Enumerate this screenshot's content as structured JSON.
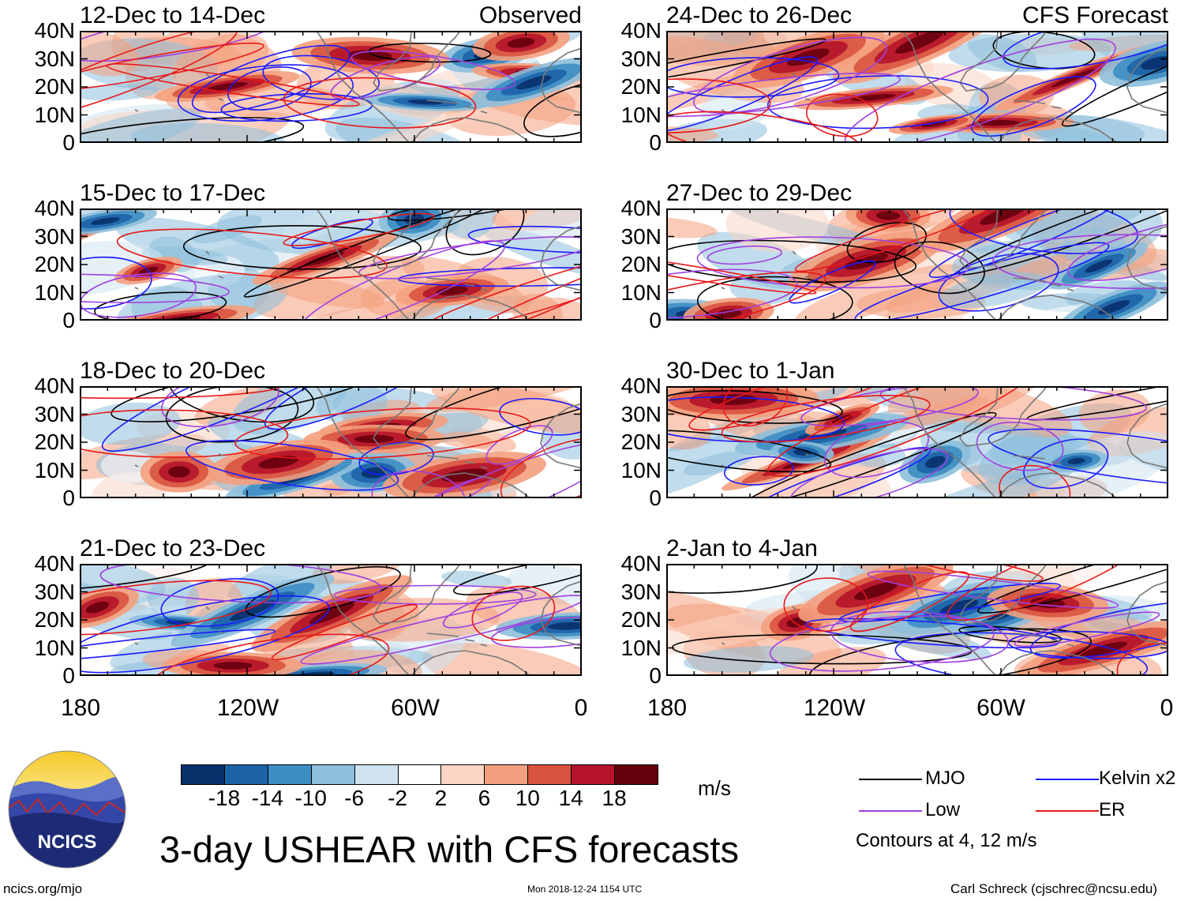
{
  "panels": [
    {
      "title": "12-Dec to 14-Dec",
      "tag": "Observed",
      "seed": 1
    },
    {
      "title": "24-Dec to 26-Dec",
      "tag": "CFS Forecast",
      "seed": 2
    },
    {
      "title": "15-Dec to 17-Dec",
      "tag": "",
      "seed": 3
    },
    {
      "title": "27-Dec to 29-Dec",
      "tag": "",
      "seed": 4
    },
    {
      "title": "18-Dec to 20-Dec",
      "tag": "",
      "seed": 5
    },
    {
      "title": "30-Dec to 1-Jan",
      "tag": "",
      "seed": 6
    },
    {
      "title": "21-Dec to 23-Dec",
      "tag": "",
      "seed": 7
    },
    {
      "title": "2-Jan to 4-Jan",
      "tag": "",
      "seed": 8
    }
  ],
  "lat_labels": [
    "40N",
    "30N",
    "20N",
    "10N",
    "0"
  ],
  "lon_labels": [
    "180",
    "120W",
    "60W",
    "0"
  ],
  "colorbar": {
    "colors": [
      "#08306b",
      "#1d63a8",
      "#3d8dc3",
      "#8ebfdc",
      "#cfe3f0",
      "#ffffff",
      "#fbd6c4",
      "#f4a07e",
      "#d9543f",
      "#b5142a",
      "#67000d"
    ],
    "labels": [
      "-18",
      "-14",
      "-10",
      "-6",
      "-2",
      "2",
      "6",
      "10",
      "14",
      "18"
    ],
    "units": "m/s"
  },
  "legend": {
    "items": [
      {
        "label": "MJO",
        "color": "#000000"
      },
      {
        "label": "Kelvin x2",
        "color": "#1a1aff"
      },
      {
        "label": "Low",
        "color": "#a040e0"
      },
      {
        "label": "ER",
        "color": "#e81818"
      }
    ],
    "note": "Contours at 4, 12 m/s"
  },
  "logo_text": "NCICS",
  "main_title": "3-day USHEAR with CFS forecasts",
  "footer": {
    "left": "ncics.org/mjo",
    "center": "Mon 2018-12-24 1154 UTC",
    "right": "Carl Schreck (cjschrec@ncsu.edu)"
  }
}
